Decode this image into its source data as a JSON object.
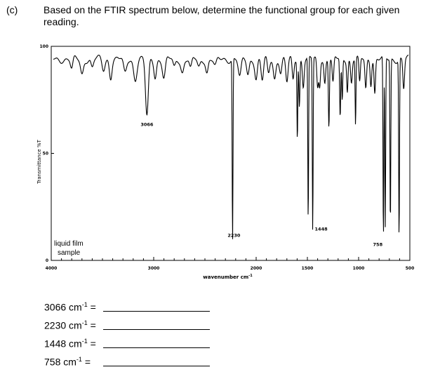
{
  "question": {
    "label": "(c)",
    "text": "Based on the FTIR spectrum below, determine the functional group for each given reading."
  },
  "chart_data": {
    "type": "line",
    "title": "",
    "xlabel": "wavenumber cm",
    "xlabel_superscript": "-1",
    "ylabel": "Transmittance %T",
    "xlim": [
      4000,
      500
    ],
    "ylim": [
      0,
      100
    ],
    "x_ticks": [
      {
        "value": 4000,
        "label": "4000"
      },
      {
        "value": 3000,
        "label": "3000"
      },
      {
        "value": 2000,
        "label": "2000"
      },
      {
        "value": 1500,
        "label": "1500"
      },
      {
        "value": 1000,
        "label": "1000"
      },
      {
        "value": 500,
        "label": "500"
      }
    ],
    "y_ticks": [
      {
        "value": 100,
        "label": "100"
      },
      {
        "value": 50,
        "label": "50"
      },
      {
        "value": 0,
        "label": "0"
      }
    ],
    "sample_note_line1": "liquid film",
    "sample_note_line2": "sample",
    "baseline": 94,
    "peaks": [
      {
        "x": 3800,
        "y": 89,
        "w": 12
      },
      {
        "x": 3700,
        "y": 87,
        "w": 14
      },
      {
        "x": 3600,
        "y": 90,
        "w": 12
      },
      {
        "x": 3490,
        "y": 89,
        "w": 14
      },
      {
        "x": 3420,
        "y": 86,
        "w": 12
      },
      {
        "x": 3280,
        "y": 87,
        "w": 15
      },
      {
        "x": 3180,
        "y": 85,
        "w": 16
      },
      {
        "x": 3066,
        "y": 67,
        "w": 14,
        "label": "3066"
      },
      {
        "x": 2985,
        "y": 86,
        "w": 12
      },
      {
        "x": 2900,
        "y": 85,
        "w": 14
      },
      {
        "x": 2800,
        "y": 90,
        "w": 12
      },
      {
        "x": 2720,
        "y": 88,
        "w": 14
      },
      {
        "x": 2640,
        "y": 89,
        "w": 12
      },
      {
        "x": 2560,
        "y": 90,
        "w": 13
      },
      {
        "x": 2480,
        "y": 88,
        "w": 12
      },
      {
        "x": 2400,
        "y": 90,
        "w": 14
      },
      {
        "x": 2230,
        "y": 9,
        "w": 4,
        "label": "2230"
      },
      {
        "x": 2160,
        "y": 85,
        "w": 14
      },
      {
        "x": 2080,
        "y": 87,
        "w": 12
      },
      {
        "x": 2000,
        "y": 85,
        "w": 12
      },
      {
        "x": 1940,
        "y": 84,
        "w": 12
      },
      {
        "x": 1880,
        "y": 87,
        "w": 11
      },
      {
        "x": 1820,
        "y": 85,
        "w": 12
      },
      {
        "x": 1760,
        "y": 88,
        "w": 11
      },
      {
        "x": 1700,
        "y": 83,
        "w": 11
      },
      {
        "x": 1640,
        "y": 84,
        "w": 9
      },
      {
        "x": 1598,
        "y": 57,
        "w": 4
      },
      {
        "x": 1578,
        "y": 72,
        "w": 5
      },
      {
        "x": 1540,
        "y": 82,
        "w": 8
      },
      {
        "x": 1492,
        "y": 17,
        "w": 4
      },
      {
        "x": 1448,
        "y": 13,
        "w": 4,
        "label": "1448"
      },
      {
        "x": 1400,
        "y": 80,
        "w": 8
      },
      {
        "x": 1380,
        "y": 82,
        "w": 7
      },
      {
        "x": 1330,
        "y": 83,
        "w": 8
      },
      {
        "x": 1290,
        "y": 63,
        "w": 5
      },
      {
        "x": 1250,
        "y": 82,
        "w": 8
      },
      {
        "x": 1180,
        "y": 66,
        "w": 5
      },
      {
        "x": 1160,
        "y": 74,
        "w": 5
      },
      {
        "x": 1110,
        "y": 80,
        "w": 6
      },
      {
        "x": 1070,
        "y": 83,
        "w": 8
      },
      {
        "x": 1030,
        "y": 63,
        "w": 4
      },
      {
        "x": 990,
        "y": 82,
        "w": 7
      },
      {
        "x": 930,
        "y": 80,
        "w": 8
      },
      {
        "x": 880,
        "y": 83,
        "w": 7
      },
      {
        "x": 842,
        "y": 78,
        "w": 7
      },
      {
        "x": 758,
        "y": 8,
        "w": 4,
        "label": "758"
      },
      {
        "x": 740,
        "y": 14,
        "w": 4
      },
      {
        "x": 690,
        "y": 16,
        "w": 4
      },
      {
        "x": 605,
        "y": 10,
        "w": 4
      },
      {
        "x": 560,
        "y": 80,
        "w": 8
      }
    ]
  },
  "answers": [
    {
      "value": "3066",
      "unit": "cm",
      "exp": "-1",
      "eq": "="
    },
    {
      "value": "2230",
      "unit": "cm",
      "exp": "-1",
      "eq": "="
    },
    {
      "value": "1448",
      "unit": "cm",
      "exp": "-1",
      "eq": "="
    },
    {
      "value": "758",
      "unit": "cm",
      "exp": "-1",
      "eq": "="
    }
  ]
}
